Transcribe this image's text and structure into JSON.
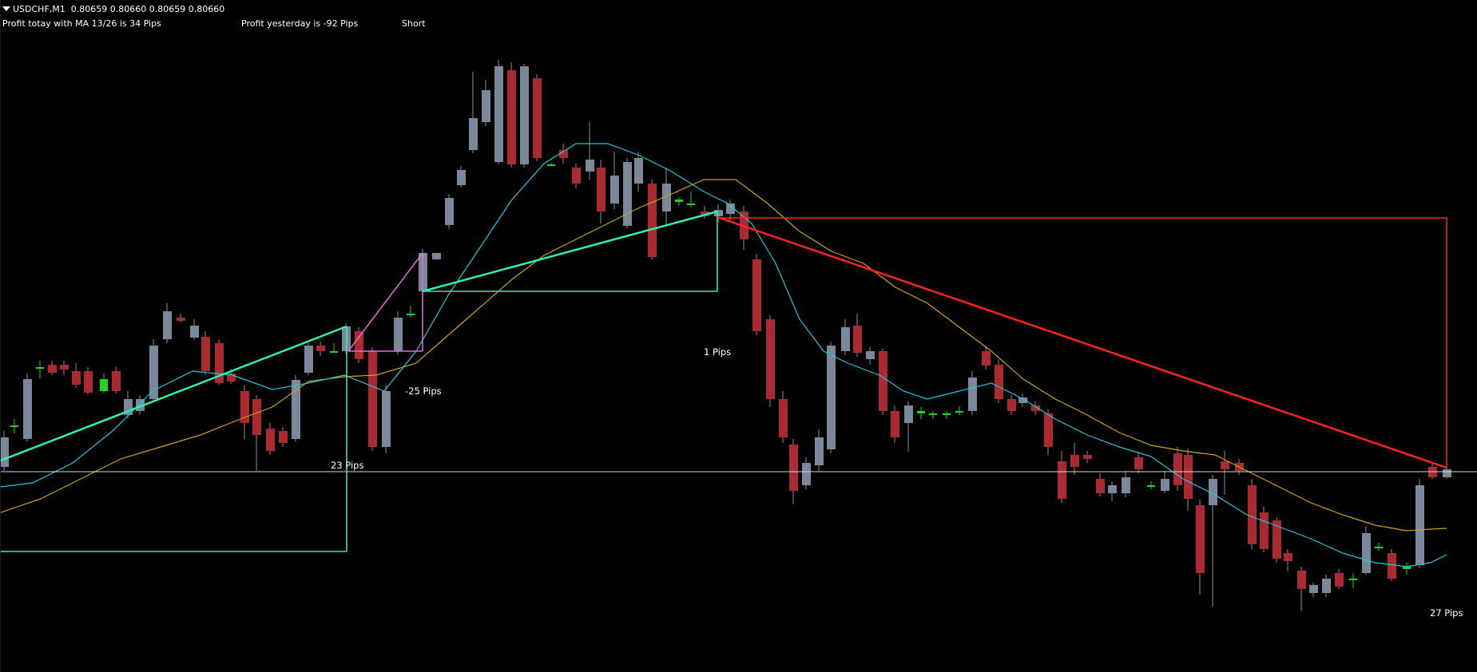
{
  "header": {
    "symbol": "USDCHF,M1",
    "quote": "0.80659 0.80660 0.80659 0.80660",
    "profit_today": "Profit totay with MA 13/26 is 34 Pips",
    "profit_yesterday": "Profit yesterday is -92 Pips",
    "direction": "Short"
  },
  "trade_labels": [
    "23 Pips",
    "-25 Pips",
    "1 Pips",
    "27 Pips"
  ],
  "colors": {
    "background": "#000000",
    "bull_candle": "#7b8899",
    "bear_candle": "#ab2a31",
    "doji": "#21d521",
    "ma_fast": "#27c6d8",
    "ma_slow": "#c9a417",
    "bid_line": "#d8d8d8",
    "trade_long": "#2bf0b4",
    "trade_pink": "#e46ad8",
    "trade_short": "#ff2222",
    "label_text": "#ffffff"
  },
  "icons": {
    "menu": "triangle-down-icon"
  }
}
